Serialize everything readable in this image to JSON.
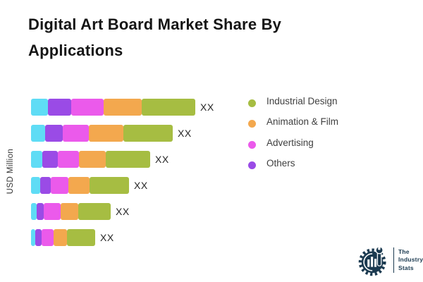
{
  "title": "Digital Art Board Market Share By Applications",
  "y_axis_label": "USD Million",
  "legend": {
    "items": [
      {
        "label": "Industrial Design",
        "color": "#A6BD42"
      },
      {
        "label": "Animation & Film",
        "color": "#F3A84E"
      },
      {
        "label": "Advertising",
        "color": "#EB5AEB"
      },
      {
        "label": "Others",
        "color": "#9A4BE6"
      }
    ]
  },
  "logo": {
    "line1": "The",
    "line2": "Industry",
    "line3": "Stats",
    "color": "#1b3a50"
  },
  "chart_data": {
    "type": "bar",
    "orientation": "horizontal",
    "stacked": true,
    "title": "Digital Art Board Market Share By Applications",
    "xlabel": "",
    "ylabel": "USD Million",
    "grid": false,
    "legend_position": "right",
    "categories": [
      "",
      "",
      "",
      "",
      "",
      ""
    ],
    "value_labels": [
      "XX",
      "XX",
      "XX",
      "XX",
      "XX",
      "XX"
    ],
    "units": "relative width (values masked as XX in source)",
    "series": [
      {
        "name": "",
        "color": "#5FDCF5",
        "values": [
          24,
          20,
          16,
          13,
          8,
          6
        ]
      },
      {
        "name": "Others",
        "color": "#9A4BE6",
        "values": [
          33,
          25,
          22,
          15,
          10,
          9
        ]
      },
      {
        "name": "Advertising",
        "color": "#EB5AEB",
        "values": [
          46,
          37,
          30,
          25,
          24,
          17
        ]
      },
      {
        "name": "Animation & Film",
        "color": "#F3A84E",
        "values": [
          54,
          49,
          38,
          30,
          25,
          19
        ]
      },
      {
        "name": "Industrial Design",
        "color": "#A6BD42",
        "values": [
          76,
          70,
          63,
          56,
          46,
          40
        ]
      }
    ]
  }
}
